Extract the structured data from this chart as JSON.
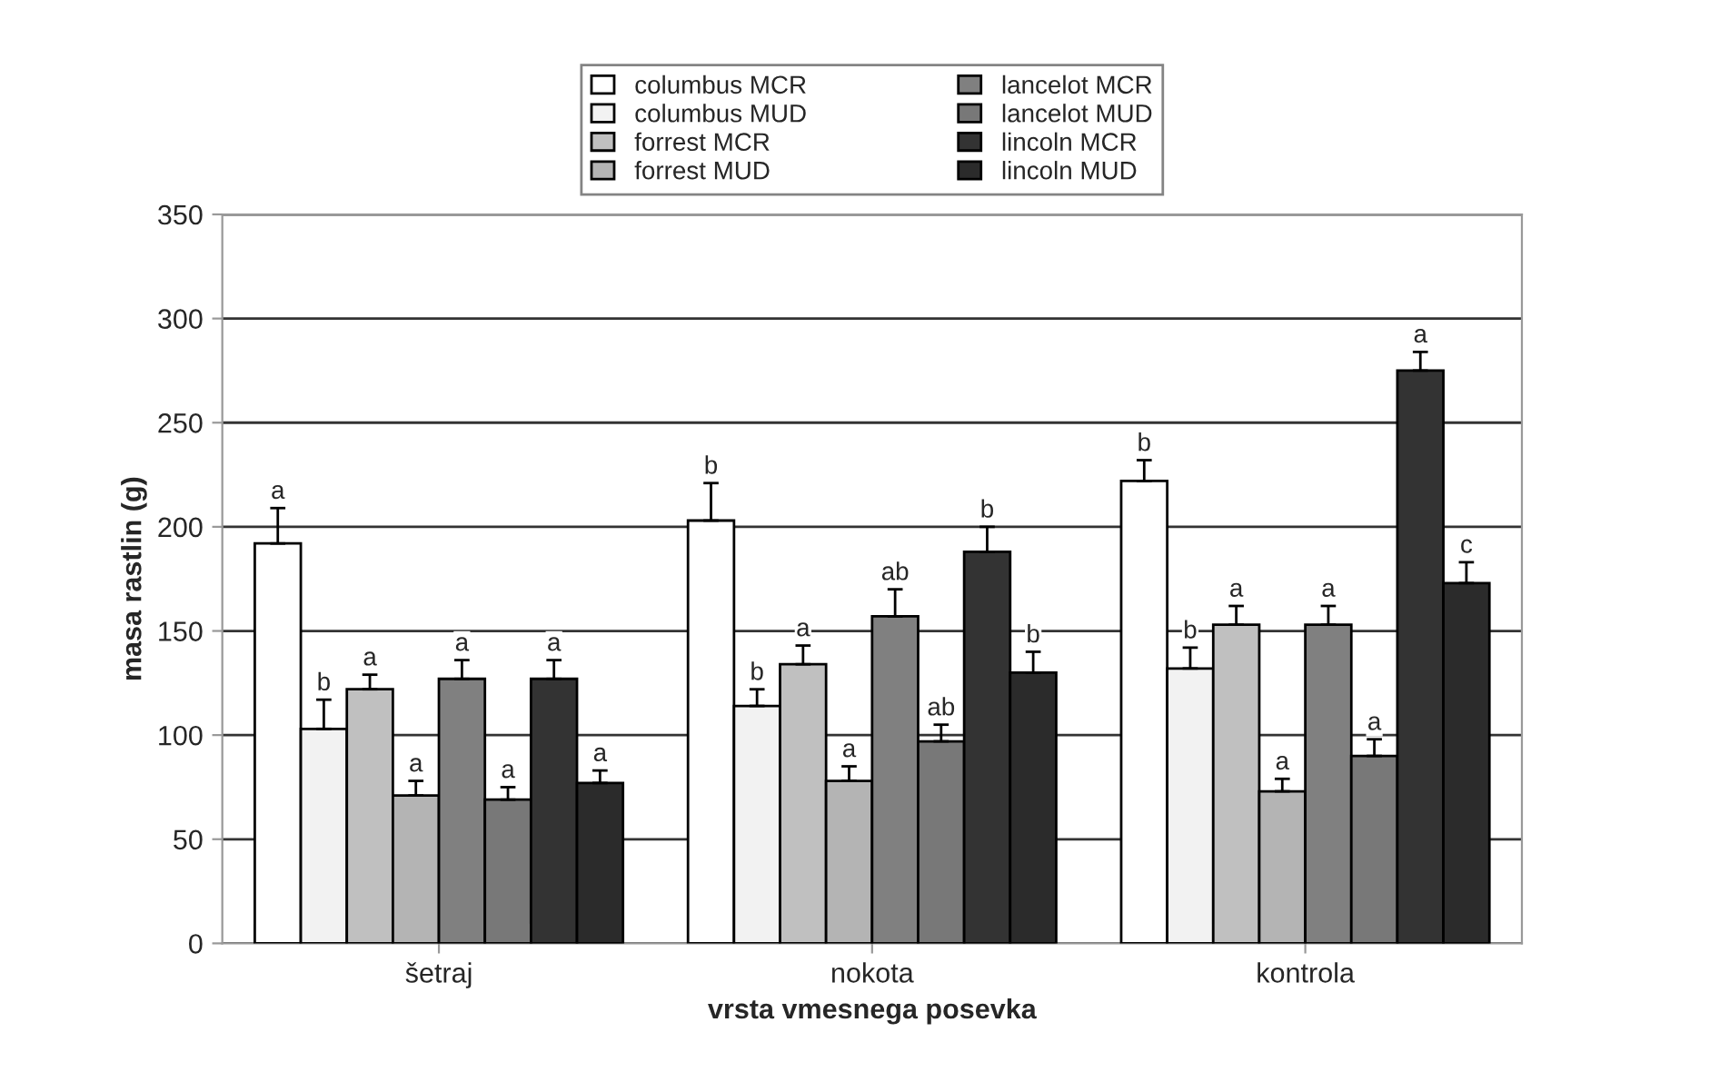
{
  "chart_data": {
    "type": "bar",
    "xlabel": "vrsta vmesnega posevka",
    "ylabel": "masa rastlin (g)",
    "categories": [
      "šetraj",
      "nokota",
      "kontrola"
    ],
    "ylim": [
      0,
      350
    ],
    "yticks": [
      0,
      50,
      100,
      150,
      200,
      250,
      300,
      350
    ],
    "grid": "y",
    "legend": "top",
    "series": [
      {
        "name": "columbus MCR",
        "color": "#ffffff",
        "values": [
          192,
          203,
          222
        ],
        "errors": [
          17,
          18,
          10
        ],
        "value_labels": [
          "a",
          "b",
          "b"
        ]
      },
      {
        "name": "columbus MUD",
        "color": "#f2f2f2",
        "values": [
          103,
          114,
          132
        ],
        "errors": [
          14,
          8,
          10
        ],
        "value_labels": [
          "b",
          "b",
          "b"
        ]
      },
      {
        "name": "forrest MCR",
        "color": "#c0c0c0",
        "values": [
          122,
          134,
          153
        ],
        "errors": [
          7,
          9,
          9
        ],
        "value_labels": [
          "a",
          "a",
          "a"
        ]
      },
      {
        "name": "forrest MUD",
        "color": "#b4b4b4",
        "values": [
          71,
          78,
          73
        ],
        "errors": [
          7,
          7,
          6
        ],
        "value_labels": [
          "a",
          "a",
          "a"
        ]
      },
      {
        "name": "lancelot MCR",
        "color": "#808080",
        "values": [
          127,
          157,
          153
        ],
        "errors": [
          9,
          13,
          9
        ],
        "value_labels": [
          "a",
          "ab",
          "a"
        ]
      },
      {
        "name": "lancelot MUD",
        "color": "#787878",
        "values": [
          69,
          97,
          90
        ],
        "errors": [
          6,
          8,
          8
        ],
        "value_labels": [
          "a",
          "ab",
          "a"
        ]
      },
      {
        "name": "lincoln MCR",
        "color": "#333333",
        "values": [
          127,
          188,
          275
        ],
        "errors": [
          9,
          12,
          9
        ],
        "value_labels": [
          "a",
          "b",
          "a"
        ]
      },
      {
        "name": "lincoln MUD",
        "color": "#2b2b2b",
        "values": [
          77,
          130,
          173
        ],
        "errors": [
          6,
          10,
          10
        ],
        "value_labels": [
          "a",
          "b",
          "c"
        ]
      }
    ]
  }
}
